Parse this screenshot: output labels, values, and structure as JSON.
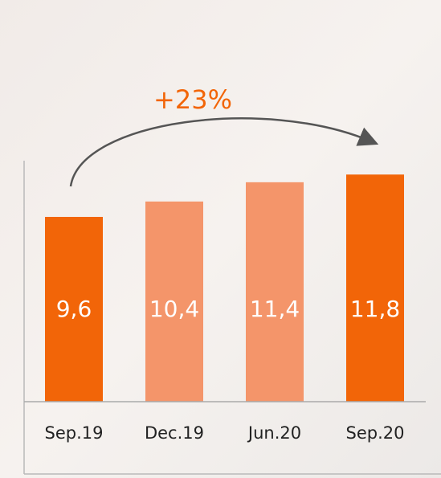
{
  "chart_data": {
    "type": "bar",
    "annotation": "+23%",
    "categories": [
      "Sep.19",
      "Dec.19",
      "Jun.20",
      "Sep.20"
    ],
    "values": [
      9.6,
      10.4,
      11.4,
      11.8
    ],
    "value_labels": [
      "9,6",
      "10,4",
      "11,4",
      "11,8"
    ],
    "colors": [
      "#f26508",
      "#f4956a",
      "#f4956a",
      "#f26508"
    ]
  }
}
